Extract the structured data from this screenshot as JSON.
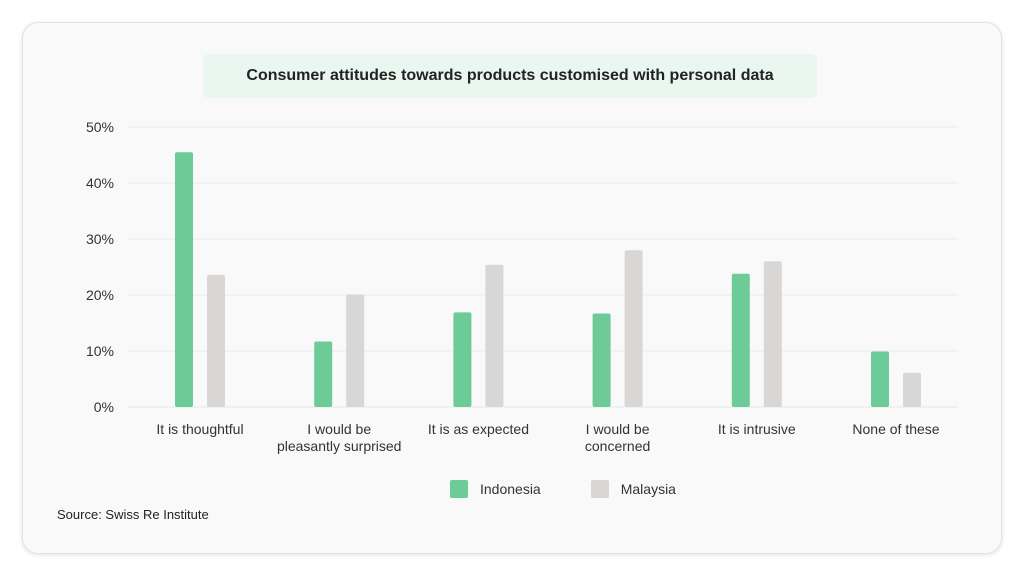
{
  "chart_data": {
    "type": "bar",
    "title": "Consumer attitudes towards products customised with personal data",
    "categories": [
      [
        "It is thoughtful"
      ],
      [
        "I would be",
        "pleasantly surprised"
      ],
      [
        "It is as expected"
      ],
      [
        "I would be",
        "concerned"
      ],
      [
        "It is intrusive"
      ],
      [
        "None of these"
      ]
    ],
    "series": [
      {
        "name": "Indonesia",
        "color": "#6dcb97",
        "values": [
          45.5,
          11.7,
          16.9,
          16.7,
          23.8,
          9.9
        ]
      },
      {
        "name": "Malaysia",
        "color": "#d9d7d6",
        "values": [
          23.6,
          20.1,
          25.4,
          28.0,
          26.0,
          6.1
        ]
      }
    ],
    "yticks": [
      "0%",
      "10%",
      "20%",
      "30%",
      "40%",
      "50%"
    ],
    "ylim": [
      0,
      50
    ],
    "xlabel": "",
    "ylabel": "",
    "grid": true,
    "legend_position": "bottom"
  },
  "source": "Source: Swiss Re Institute"
}
